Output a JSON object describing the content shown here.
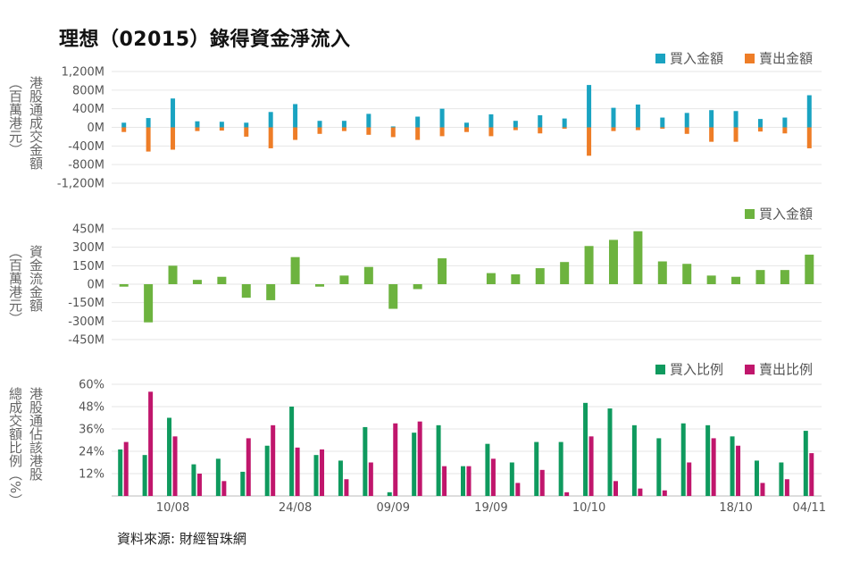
{
  "title": "理想（02015）錄得資金淨流入",
  "source": "資料來源: 財經智珠網",
  "colors": {
    "buy": "#1aa3c1",
    "sell": "#ee7d27",
    "net": "#6db33f",
    "buy_ratio": "#0f9a5e",
    "sell_ratio": "#c0166c",
    "grid": "#e6e6e6"
  },
  "x_tick_labels": [
    "10/08",
    "24/08",
    "09/09",
    "19/09",
    "10/10",
    "18/10",
    "04/11"
  ],
  "chart_data": [
    {
      "type": "bar",
      "legend_placement": "top-right",
      "ylabel": [
        "港股通成交金額",
        "（百萬港元）"
      ],
      "ylim": [
        -1200,
        1200
      ],
      "yticks": [
        "1,200M",
        "800M",
        "400M",
        "0M",
        "-400M",
        "-800M",
        "-1,200M"
      ],
      "series": [
        {
          "name": "買入金額",
          "color": "buy",
          "values": [
            100,
            200,
            620,
            130,
            120,
            100,
            330,
            500,
            140,
            140,
            290,
            20,
            230,
            400,
            100,
            280,
            140,
            260,
            190,
            910,
            420,
            490,
            210,
            310,
            370,
            350,
            180,
            210,
            690
          ]
        },
        {
          "name": "賣出金額",
          "color": "sell",
          "values": [
            -100,
            -520,
            -480,
            -80,
            -70,
            -200,
            -450,
            -270,
            -140,
            -80,
            -160,
            -210,
            -270,
            -190,
            -100,
            -190,
            -60,
            -130,
            -30,
            -610,
            -80,
            -60,
            -30,
            -140,
            -310,
            -310,
            -90,
            -130,
            -450
          ]
        }
      ]
    },
    {
      "type": "bar",
      "legend_placement": "top-right",
      "ylabel": [
        "資金流金額",
        "（百萬港元）"
      ],
      "ylim": [
        -450,
        450
      ],
      "yticks": [
        "450M",
        "300M",
        "150M",
        "0M",
        "-150M",
        "-300M",
        "-450M"
      ],
      "series": [
        {
          "name": "買入金額",
          "color": "net",
          "values": [
            -20,
            -310,
            150,
            35,
            60,
            -110,
            -130,
            220,
            -20,
            70,
            140,
            -200,
            -40,
            210,
            0,
            90,
            80,
            130,
            180,
            310,
            360,
            430,
            185,
            165,
            70,
            60,
            115,
            115,
            240
          ]
        }
      ]
    },
    {
      "type": "bar",
      "legend_placement": "top-right",
      "ylabel": [
        "港股通佔該港股",
        "總成交額比例（%）"
      ],
      "ylim": [
        0,
        60
      ],
      "yticks": [
        "60%",
        "48%",
        "36%",
        "24%",
        "12%"
      ],
      "series": [
        {
          "name": "買入比例",
          "color": "buy_ratio",
          "values": [
            25,
            22,
            42,
            17,
            20,
            13,
            27,
            48,
            22,
            19,
            37,
            2,
            34,
            38,
            16,
            28,
            18,
            29,
            29,
            50,
            47,
            38,
            31,
            39,
            38,
            32,
            19,
            18,
            35
          ]
        },
        {
          "name": "賣出比例",
          "color": "sell_ratio",
          "values": [
            29,
            56,
            32,
            12,
            8,
            31,
            38,
            26,
            25,
            9,
            18,
            39,
            40,
            16,
            16,
            20,
            7,
            14,
            2,
            32,
            8,
            4,
            3,
            18,
            31,
            27,
            7,
            9,
            23
          ]
        }
      ]
    }
  ]
}
